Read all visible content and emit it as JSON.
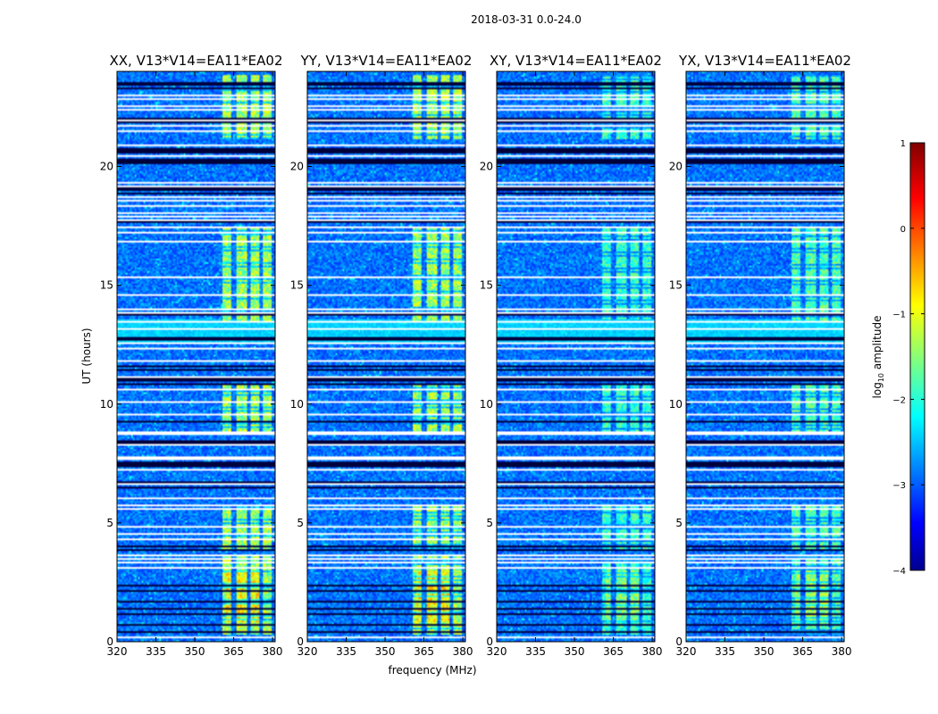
{
  "figure_title": "2018-03-31 0.0-24.0",
  "chart_data": {
    "type": "heatmap",
    "title": "2018-03-31 0.0-24.0",
    "xlabel": "frequency (MHz)",
    "ylabel": "UT (hours)",
    "xlim": [
      320,
      381
    ],
    "ylim": [
      0,
      24
    ],
    "x_ticks": [
      "320",
      "335",
      "350",
      "365",
      "380"
    ],
    "y_ticks": [
      "0",
      "5",
      "10",
      "15",
      "20"
    ],
    "panels": [
      {
        "name": "XX, V13*V14=EA11*EA02",
        "rfi_strength": 1.0
      },
      {
        "name": "YY, V13*V14=EA11*EA02",
        "rfi_strength": 1.0
      },
      {
        "name": "XY, V13*V14=EA11*EA02",
        "rfi_strength": 0.8
      },
      {
        "name": "YX, V13*V14=EA11*EA02",
        "rfi_strength": 0.85
      }
    ],
    "rfi_band_mhz": [
      360,
      380
    ],
    "rfi_columns_mhz": [
      [
        360.5,
        364.5
      ],
      [
        366.5,
        370.5
      ],
      [
        371.5,
        375.5
      ],
      [
        376.5,
        380
      ]
    ],
    "rfi_intervals_ut": [
      [
        0.3,
        3.6
      ],
      [
        3.9,
        5.7
      ],
      [
        8.8,
        10.9
      ],
      [
        13.5,
        17.5
      ],
      [
        21.2,
        23.9
      ]
    ],
    "blanked_rows_ut": [
      0.15,
      3.1,
      3.3,
      3.45,
      3.6,
      4.3,
      4.55,
      4.8,
      5.6,
      5.75,
      6.0,
      6.6,
      7.25,
      7.65,
      7.75,
      8.25,
      8.75,
      8.8,
      9.55,
      10.05,
      10.6,
      11.1,
      11.8,
      12.35,
      12.55,
      13.2,
      13.45,
      13.85,
      14.0,
      14.6,
      15.35,
      16.85,
      17.25,
      17.45,
      17.75,
      17.9,
      18.05,
      18.35,
      18.55,
      18.7,
      19.2,
      19.3,
      20.45,
      20.95,
      21.5,
      21.75,
      22.0,
      22.4,
      22.55,
      22.9,
      23.0
    ],
    "dark_rows_ut": [
      0.35,
      0.65,
      1.1,
      1.35,
      1.65,
      2.1,
      2.35,
      3.85,
      3.95,
      6.5,
      6.7,
      7.35,
      7.45,
      7.55,
      8.35,
      8.45,
      9.25,
      10.85,
      10.95,
      11.05,
      11.45,
      11.55,
      12.7,
      12.8,
      13.75,
      17.65,
      18.9,
      19.0,
      19.1,
      20.15,
      20.25,
      20.35,
      20.6,
      20.7,
      20.8,
      21.9,
      22.05,
      23.3,
      23.45,
      23.55
    ],
    "colorbar": {
      "label": "log10 amplitude",
      "label_base": "log",
      "label_sub": "10",
      "label_rest": " amplitude",
      "range": [
        -4,
        1
      ],
      "ticks": [
        "1",
        "0",
        "−1",
        "−2",
        "−3",
        "−4"
      ],
      "colormap": "jet"
    }
  }
}
